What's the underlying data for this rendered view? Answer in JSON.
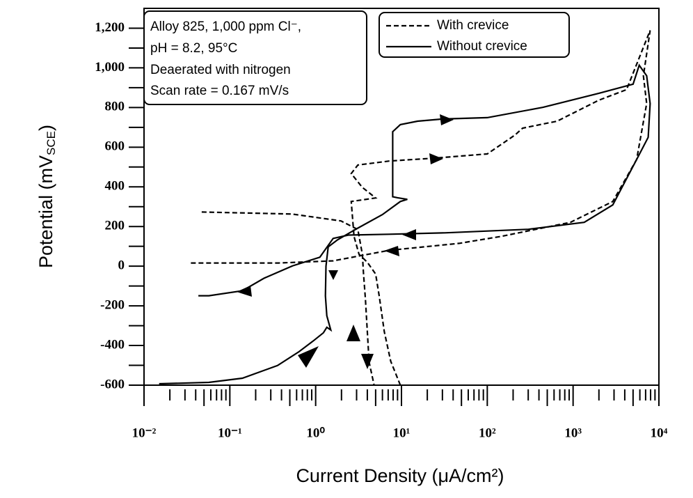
{
  "chart_data": {
    "type": "line",
    "annotation": [
      "Alloy 825, 1,000 ppm Cl⁻,",
      "pH = 8.2, 95°C",
      "Deaerated with nitrogen",
      "Scan rate = 0.167 mV/s"
    ],
    "xlabel": "Current Density (μA/cm²)",
    "ylabel": {
      "text": "Potential (mV",
      "sub": "SCE",
      "close": ")"
    },
    "xscale": "log",
    "xlim": [
      0.01,
      10000
    ],
    "xticks": [
      {
        "value": 0.01,
        "label": "10⁻²"
      },
      {
        "value": 0.1,
        "label": "10⁻¹"
      },
      {
        "value": 1,
        "label": "10⁰"
      },
      {
        "value": 10,
        "label": "10¹"
      },
      {
        "value": 100,
        "label": "10²"
      },
      {
        "value": 1000,
        "label": "10³"
      },
      {
        "value": 10000,
        "label": "10⁴"
      }
    ],
    "ylim": [
      -600,
      1300
    ],
    "yticks": [
      -600,
      -400,
      -200,
      0,
      200,
      400,
      600,
      800,
      {
        "value": 1000,
        "label": "1,000"
      },
      {
        "value": 1200,
        "label": "1,200"
      }
    ],
    "legend": "upper right",
    "series": [
      {
        "name": "With crevice",
        "color": "#000000",
        "dash": "dashed",
        "x": [
          9.7,
          7.5,
          6.3,
          5.5,
          5.0,
          4.0,
          3.2,
          2.8,
          2.6,
          5,
          3.5,
          2.6,
          3.1,
          7.2,
          24.6,
          100,
          210,
          258,
          650,
          2000,
          4200,
          7900,
          6600,
          7200,
          5500,
          2900,
          930,
          145,
          47,
          7.2,
          1.6,
          0.37,
          0.057,
          0.034,
          null,
          0.047,
          0.53,
          1.97,
          3.1,
          3.5,
          3.6,
          3.8,
          4.2,
          4.8
        ],
        "values": [
          -600,
          -480,
          -330,
          -150,
          -40,
          20,
          60,
          150,
          326,
          344,
          397,
          467,
          510,
          530,
          545,
          566,
          661,
          696,
          731,
          837,
          890,
          1189,
          960,
          820,
          538,
          326,
          221,
          150,
          115,
          80,
          27,
          16,
          16,
          16,
          null,
          273,
          263,
          228,
          185,
          60,
          -30,
          -167,
          -484,
          -600
        ]
      },
      {
        "name": "Without crevice",
        "color": "#000000",
        "dash": "solid",
        "x": [
          0.015,
          0.057,
          0.14,
          0.36,
          0.64,
          0.93,
          1.23,
          1.35,
          1.5,
          1.35,
          1.3,
          1.32,
          1.4,
          1.8,
          2.9,
          6,
          9.7,
          11.7,
          9,
          7.9,
          7.9,
          9.7,
          15.4,
          30,
          100,
          446,
          2000,
          5000,
          5900,
          7200,
          7900,
          7500,
          5500,
          2900,
          1350,
          302,
          32,
          7.2,
          2.4,
          1.6,
          1.12,
          0.54,
          0.25,
          0.14,
          0.057,
          0.043
        ],
        "values": [
          -593,
          -586,
          -565,
          -501,
          -431,
          -378,
          -336,
          -308,
          -322,
          -250,
          -150,
          0,
          97,
          133,
          185,
          260,
          326,
          337,
          345,
          350,
          678,
          714,
          731,
          742,
          749,
          801,
          872,
          918,
          1013,
          960,
          820,
          650,
          538,
          309,
          221,
          186,
          168,
          161,
          157,
          140,
          45,
          2,
          -61,
          -124,
          -149,
          -149
        ]
      }
    ]
  }
}
